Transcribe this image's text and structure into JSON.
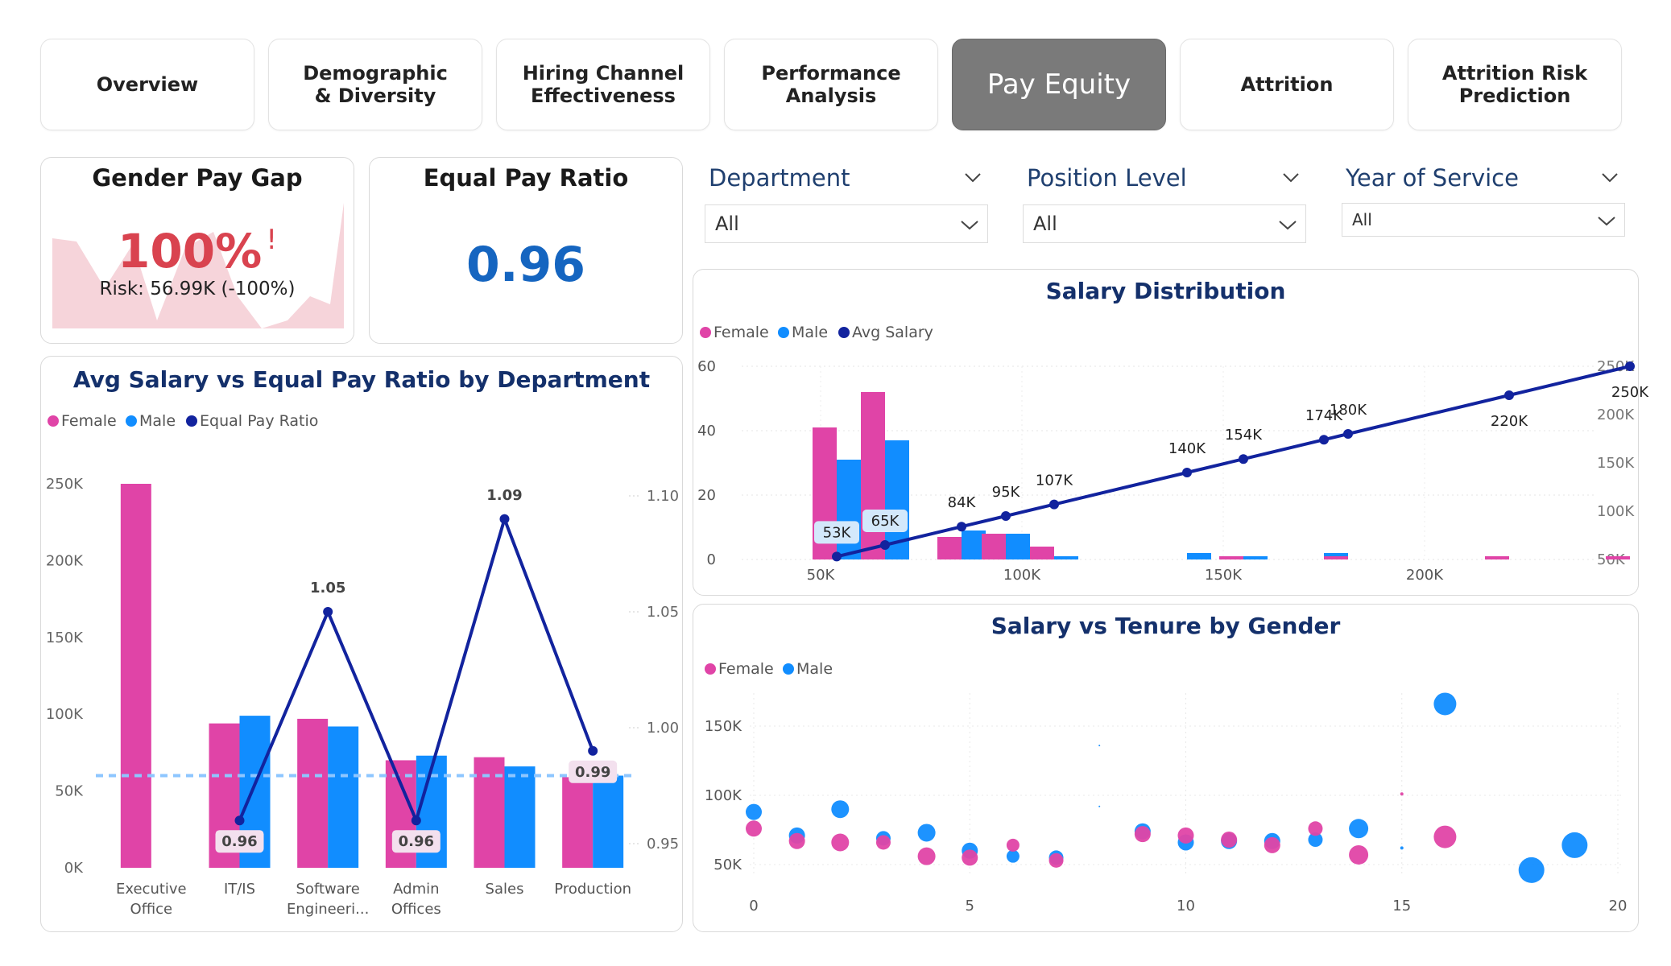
{
  "tabs": [
    {
      "label": "Overview"
    },
    {
      "label": "Demographic & Diversity"
    },
    {
      "label": "Hiring Channel Effectiveness"
    },
    {
      "label": "Performance Analysis"
    },
    {
      "label": "Pay Equity"
    },
    {
      "label": "Attrition"
    },
    {
      "label": "Attrition Risk Prediction"
    }
  ],
  "active_tab": "Pay Equity",
  "kpis": {
    "gender_pay_gap": {
      "title": "Gender Pay Gap",
      "value": "100%",
      "alert": "!",
      "risk": "Risk: 56.99K (-100%)",
      "color": "#d9434f"
    },
    "equal_pay_ratio": {
      "title": "Equal Pay Ratio",
      "value": "0.96",
      "color": "#1565c0"
    }
  },
  "filters": [
    {
      "label": "Department",
      "value": "All"
    },
    {
      "label": "Position Level",
      "value": "All"
    },
    {
      "label": "Year of Service",
      "value": "All"
    }
  ],
  "colors": {
    "female": "#e044a7",
    "male": "#118dff",
    "line": "#12239e",
    "ref": "#8ec6ff"
  },
  "chart_data": [
    {
      "type": "bar",
      "title": "Avg Salary vs Equal Pay Ratio by Department",
      "legend": [
        "Female",
        "Male",
        "Equal Pay Ratio"
      ],
      "categories": [
        "Executive Office",
        "IT/IS",
        "Software Engineeri...",
        "Admin Offices",
        "Sales",
        "Production"
      ],
      "series": [
        {
          "name": "Female",
          "values": [
            250000,
            94000,
            97000,
            70000,
            72000,
            59000
          ]
        },
        {
          "name": "Male",
          "values": [
            null,
            99000,
            92000,
            73000,
            66000,
            60000
          ]
        },
        {
          "name": "Equal Pay Ratio",
          "type": "line",
          "axis": "right",
          "values": [
            null,
            0.96,
            1.05,
            0.96,
            1.09,
            0.99
          ]
        }
      ],
      "ratio_labels": [
        "",
        "0.96",
        "1.05",
        "0.96",
        "1.09",
        "0.99"
      ],
      "y_ticks": [
        "0K",
        "50K",
        "100K",
        "150K",
        "200K",
        "250K"
      ],
      "y2_ticks": [
        "0.95",
        "1.00",
        "1.05",
        "1.10"
      ],
      "ylim": [
        0,
        250000
      ],
      "y2lim": [
        0.95,
        1.1
      ],
      "reference_line": 60000
    },
    {
      "type": "bar",
      "title": "Salary Distribution",
      "legend": [
        "Female",
        "Male",
        "Avg Salary"
      ],
      "x_ticks": [
        "50K",
        "100K",
        "150K",
        "200K"
      ],
      "x_tick_values": [
        50000,
        100000,
        150000,
        200000
      ],
      "xlim": [
        40000,
        250000
      ],
      "y_ticks": [
        "0",
        "20",
        "40",
        "60"
      ],
      "ylim": [
        0,
        60
      ],
      "y2_ticks": [
        "50K",
        "100K",
        "150K",
        "200K",
        "250K"
      ],
      "y2lim": [
        50000,
        250000
      ],
      "bins": [
        {
          "x": 53000,
          "female": 41,
          "male": 31
        },
        {
          "x": 65000,
          "female": 52,
          "male": 37
        },
        {
          "x": 84000,
          "female": 7,
          "male": 9
        },
        {
          "x": 95000,
          "female": 8,
          "male": 8
        },
        {
          "x": 107000,
          "female": 4,
          "male": 1
        },
        {
          "x": 140000,
          "female": 0,
          "male": 2
        },
        {
          "x": 154000,
          "female": 1,
          "male": 1
        },
        {
          "x": 174000,
          "female": 0,
          "male": 2
        },
        {
          "x": 180000,
          "female": 1,
          "male": 0
        },
        {
          "x": 220000,
          "female": 1,
          "male": 0
        },
        {
          "x": 250000,
          "female": 1,
          "male": 0
        }
      ],
      "avg_line": [
        {
          "x": 53000,
          "y": 53000,
          "label": "53K"
        },
        {
          "x": 65000,
          "y": 65000,
          "label": "65K"
        },
        {
          "x": 84000,
          "y": 84000,
          "label": "84K"
        },
        {
          "x": 95000,
          "y": 95000,
          "label": "95K"
        },
        {
          "x": 107000,
          "y": 107000,
          "label": "107K"
        },
        {
          "x": 140000,
          "y": 140000,
          "label": "140K"
        },
        {
          "x": 154000,
          "y": 154000,
          "label": "154K"
        },
        {
          "x": 174000,
          "y": 174000,
          "label": "174K"
        },
        {
          "x": 180000,
          "y": 180000,
          "label": "180K"
        },
        {
          "x": 220000,
          "y": 220000,
          "label": "220K"
        },
        {
          "x": 250000,
          "y": 250000,
          "label": "250K"
        }
      ]
    },
    {
      "type": "scatter",
      "title": "Salary vs Tenure by Gender",
      "legend": [
        "Female",
        "Male"
      ],
      "x_ticks": [
        "0",
        "5",
        "10",
        "15",
        "20"
      ],
      "xlim": [
        0,
        20
      ],
      "y_ticks": [
        "50K",
        "100K",
        "150K"
      ],
      "ylim": [
        45000,
        175000
      ],
      "points": [
        {
          "g": "Male",
          "x": 0,
          "y": 88000,
          "s": 10
        },
        {
          "g": "Female",
          "x": 0,
          "y": 76000,
          "s": 10
        },
        {
          "g": "Male",
          "x": 1,
          "y": 71000,
          "s": 10
        },
        {
          "g": "Female",
          "x": 1,
          "y": 67000,
          "s": 10
        },
        {
          "g": "Male",
          "x": 2,
          "y": 90000,
          "s": 11
        },
        {
          "g": "Female",
          "x": 2,
          "y": 66000,
          "s": 11
        },
        {
          "g": "Male",
          "x": 3,
          "y": 69000,
          "s": 9
        },
        {
          "g": "Female",
          "x": 3,
          "y": 66000,
          "s": 9
        },
        {
          "g": "Male",
          "x": 4,
          "y": 73000,
          "s": 11
        },
        {
          "g": "Female",
          "x": 4,
          "y": 56000,
          "s": 11
        },
        {
          "g": "Male",
          "x": 5,
          "y": 60000,
          "s": 10
        },
        {
          "g": "Female",
          "x": 5,
          "y": 55000,
          "s": 10
        },
        {
          "g": "Male",
          "x": 6,
          "y": 56000,
          "s": 8
        },
        {
          "g": "Female",
          "x": 6,
          "y": 64000,
          "s": 8
        },
        {
          "g": "Male",
          "x": 7,
          "y": 55000,
          "s": 9
        },
        {
          "g": "Female",
          "x": 7,
          "y": 53000,
          "s": 9
        },
        {
          "g": "Male",
          "x": 8,
          "y": 136000,
          "s": 1
        },
        {
          "g": "Male",
          "x": 8,
          "y": 92000,
          "s": 1
        },
        {
          "g": "Male",
          "x": 9,
          "y": 74000,
          "s": 10
        },
        {
          "g": "Female",
          "x": 9,
          "y": 72000,
          "s": 10
        },
        {
          "g": "Male",
          "x": 10,
          "y": 66000,
          "s": 10
        },
        {
          "g": "Female",
          "x": 10,
          "y": 71000,
          "s": 10
        },
        {
          "g": "Male",
          "x": 11,
          "y": 67000,
          "s": 10
        },
        {
          "g": "Female",
          "x": 11,
          "y": 68000,
          "s": 10
        },
        {
          "g": "Male",
          "x": 12,
          "y": 67000,
          "s": 10
        },
        {
          "g": "Female",
          "x": 12,
          "y": 64000,
          "s": 10
        },
        {
          "g": "Male",
          "x": 13,
          "y": 68000,
          "s": 9
        },
        {
          "g": "Female",
          "x": 13,
          "y": 76000,
          "s": 9
        },
        {
          "g": "Male",
          "x": 14,
          "y": 76000,
          "s": 12
        },
        {
          "g": "Female",
          "x": 14,
          "y": 57000,
          "s": 12
        },
        {
          "g": "Female",
          "x": 15,
          "y": 101000,
          "s": 2
        },
        {
          "g": "Male",
          "x": 15,
          "y": 62000,
          "s": 2
        },
        {
          "g": "Male",
          "x": 16,
          "y": 166000,
          "s": 14
        },
        {
          "g": "Female",
          "x": 16,
          "y": 70000,
          "s": 14
        },
        {
          "g": "Male",
          "x": 18,
          "y": 46000,
          "s": 16
        },
        {
          "g": "Male",
          "x": 19,
          "y": 64000,
          "s": 16
        }
      ]
    }
  ]
}
